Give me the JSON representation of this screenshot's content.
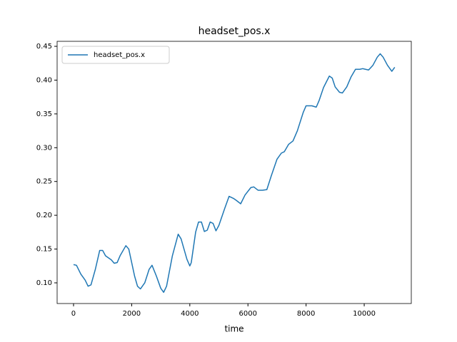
{
  "chart_data": {
    "type": "line",
    "title": "headset_pos.x",
    "x_label": "time",
    "x": [
      0,
      100,
      250,
      400,
      500,
      600,
      750,
      900,
      1000,
      1100,
      1300,
      1400,
      1500,
      1600,
      1800,
      1900,
      2000,
      2100,
      2200,
      2300,
      2450,
      2600,
      2700,
      2850,
      3000,
      3100,
      3200,
      3400,
      3600,
      3700,
      3800,
      3900,
      4000,
      4050,
      4200,
      4300,
      4400,
      4500,
      4600,
      4700,
      4800,
      4900,
      5000,
      5200,
      5350,
      5500,
      5600,
      5750,
      5900,
      6100,
      6200,
      6350,
      6500,
      6650,
      6800,
      7000,
      7150,
      7250,
      7400,
      7550,
      7700,
      7900,
      8000,
      8200,
      8350,
      8450,
      8600,
      8800,
      8900,
      9000,
      9150,
      9250,
      9400,
      9550,
      9700,
      9850,
      9950,
      10150,
      10300,
      10450,
      10550,
      10650,
      10800,
      10950,
      11050
    ],
    "series": [
      {
        "name": "headset_pos.x",
        "color": "#1f77b4",
        "values": [
          0.127,
          0.126,
          0.113,
          0.104,
          0.095,
          0.097,
          0.12,
          0.148,
          0.148,
          0.14,
          0.134,
          0.129,
          0.13,
          0.14,
          0.155,
          0.15,
          0.13,
          0.11,
          0.095,
          0.091,
          0.1,
          0.12,
          0.126,
          0.11,
          0.092,
          0.086,
          0.095,
          0.14,
          0.172,
          0.165,
          0.15,
          0.135,
          0.125,
          0.13,
          0.175,
          0.19,
          0.19,
          0.176,
          0.178,
          0.19,
          0.188,
          0.177,
          0.185,
          0.21,
          0.228,
          0.225,
          0.222,
          0.217,
          0.23,
          0.241,
          0.242,
          0.237,
          0.237,
          0.238,
          0.258,
          0.283,
          0.292,
          0.294,
          0.305,
          0.31,
          0.325,
          0.352,
          0.362,
          0.362,
          0.36,
          0.37,
          0.389,
          0.406,
          0.403,
          0.39,
          0.382,
          0.381,
          0.39,
          0.405,
          0.416,
          0.416,
          0.417,
          0.415,
          0.422,
          0.434,
          0.439,
          0.434,
          0.422,
          0.413,
          0.419
        ]
      }
    ],
    "xlim": [
      -565,
      11620
    ],
    "xticks": [
      0,
      2000,
      4000,
      6000,
      8000,
      10000
    ],
    "ylim": [
      0.0694,
      0.4574
    ],
    "yticks": [
      {
        "value": 0.1,
        "label": "0.10"
      },
      0.15,
      {
        "value": 0.2,
        "label": "0.20"
      },
      0.25,
      {
        "value": 0.3,
        "label": "0.30"
      },
      0.35,
      {
        "value": 0.4,
        "label": "0.40"
      },
      0.45
    ],
    "legend": "upper left"
  }
}
